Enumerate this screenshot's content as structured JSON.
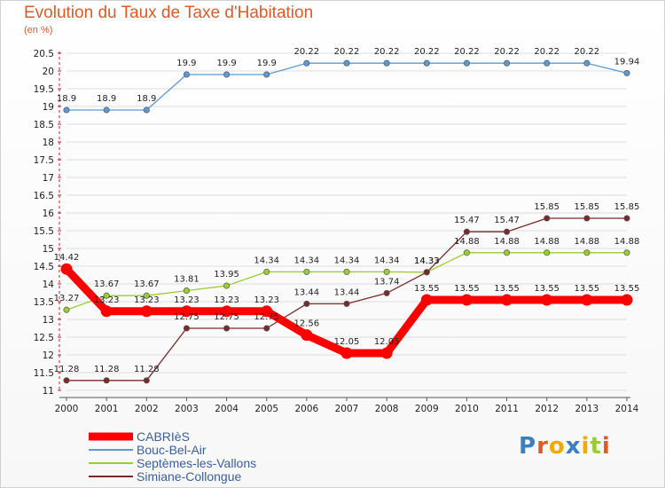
{
  "title": "Evolution du Taux de Taxe d'Habitation",
  "unit": "(en %)",
  "logo": "Proxiti",
  "colors": {
    "title": "#e15a24",
    "grid": "#dddddd"
  },
  "chart_data": {
    "type": "line",
    "title": "Evolution du Taux de Taxe d'Habitation",
    "ylabel": "(en %)",
    "xlabel": "",
    "x": [
      2000,
      2001,
      2002,
      2003,
      2004,
      2005,
      2006,
      2007,
      2008,
      2009,
      2010,
      2011,
      2012,
      2013,
      2014
    ],
    "ylim": [
      11,
      20.5
    ],
    "ytick_step": 0.5,
    "grid": "horizontal",
    "legend_position": "bottom-left",
    "series": [
      {
        "name": "CABRIèS",
        "color": "#ff0000",
        "values": [
          14.42,
          13.23,
          13.23,
          13.23,
          13.23,
          13.23,
          12.56,
          12.05,
          12.05,
          13.55,
          13.55,
          13.55,
          13.55,
          13.55,
          13.55
        ]
      },
      {
        "name": "Bouc-Bel-Air",
        "color": "#5b9bd5",
        "values": [
          18.9,
          18.9,
          18.9,
          19.9,
          19.9,
          19.9,
          20.22,
          20.22,
          20.22,
          20.22,
          20.22,
          20.22,
          20.22,
          20.22,
          19.94
        ]
      },
      {
        "name": "Septèmes-les-Vallons",
        "color": "#9acd32",
        "values": [
          13.27,
          13.67,
          13.67,
          13.81,
          13.95,
          14.34,
          14.34,
          14.34,
          14.34,
          14.33,
          14.88,
          14.88,
          14.88,
          14.88,
          14.88
        ]
      },
      {
        "name": "Simiane-Collongue",
        "color": "#7b2a2a",
        "values": [
          11.28,
          11.28,
          11.28,
          12.75,
          12.75,
          12.75,
          13.44,
          13.44,
          13.74,
          14.33,
          15.47,
          15.47,
          15.85,
          15.85,
          15.85
        ]
      }
    ],
    "data_labels": [
      [
        "14.42",
        "13.23",
        "13.23",
        "13.23",
        "13.23",
        "13.23",
        "12.56",
        "12.05",
        "12.05",
        "13.55",
        "13.55",
        "13.55",
        "13.55",
        "13.55",
        "13.55"
      ],
      [
        "18.9",
        "18.9",
        "18.9",
        "19.9",
        "19.9",
        "19.9",
        "20.22",
        "20.22",
        "20.22",
        "20.22",
        "20.22",
        "20.22",
        "20.22",
        "20.22",
        "19.94"
      ],
      [
        "13.27",
        "13.67",
        "13.67",
        "13.81",
        "13.95",
        "14.34",
        "14.34",
        "14.34",
        "14.34",
        "14.33",
        "14.88",
        "14.88",
        "14.88",
        "14.88",
        "14.88"
      ],
      [
        "11.28",
        "11.28",
        "11.28",
        "12.75",
        "12.75",
        "12.75",
        "13.44",
        "13.44",
        "13.74",
        "14.33",
        "15.47",
        "15.47",
        "15.85",
        "15.85",
        "15.85"
      ]
    ]
  }
}
